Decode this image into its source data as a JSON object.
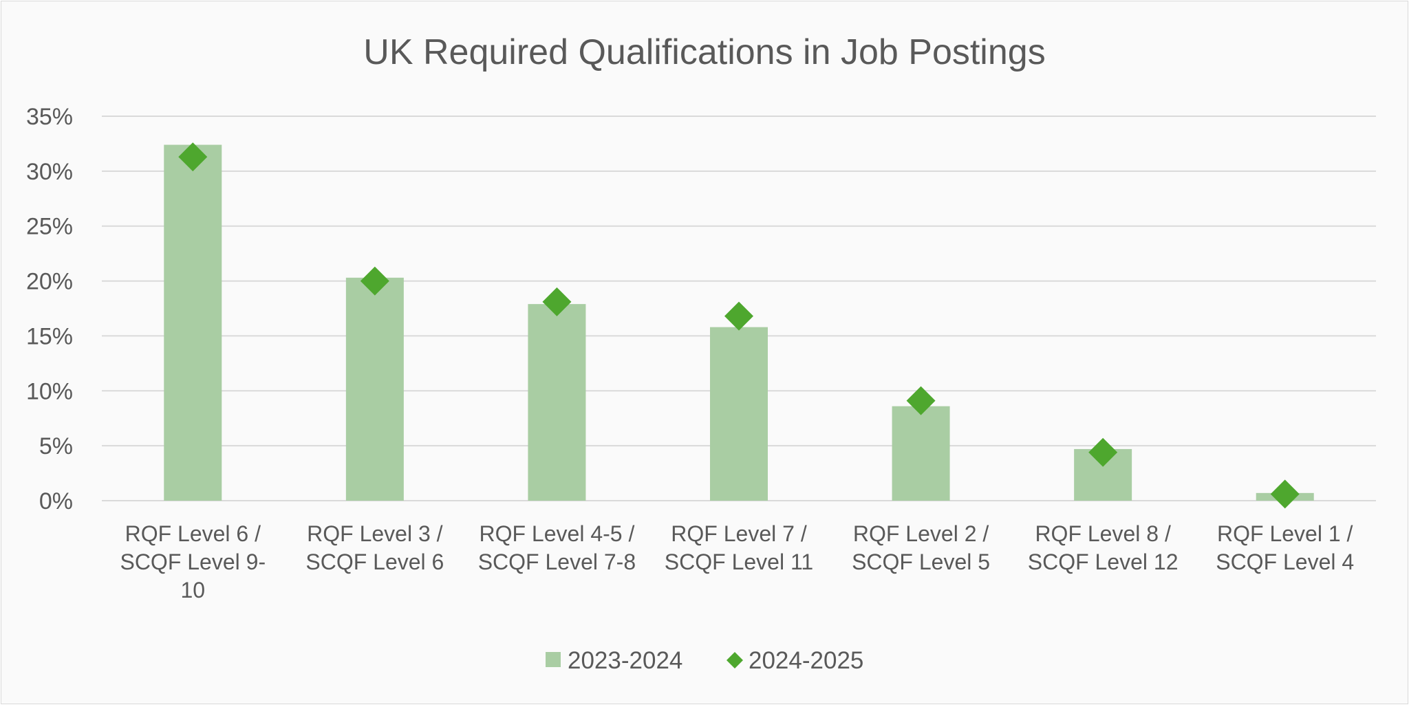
{
  "chart_data": {
    "type": "bar",
    "title": "UK Required Qualifications in Job Postings",
    "xlabel": "",
    "ylabel": "",
    "ylim": [
      0,
      0.35
    ],
    "y_ticks": [
      0,
      0.05,
      0.1,
      0.15,
      0.2,
      0.25,
      0.3,
      0.35
    ],
    "y_tick_labels": [
      "0%",
      "5%",
      "10%",
      "15%",
      "20%",
      "25%",
      "30%",
      "35%"
    ],
    "categories": [
      [
        "RQF Level 6 /",
        "SCQF Level 9-",
        "10"
      ],
      [
        "RQF Level 3 /",
        "SCQF Level 6"
      ],
      [
        "RQF Level 4-5 /",
        "SCQF Level 7-8"
      ],
      [
        "RQF Level 7 /",
        "SCQF Level 11"
      ],
      [
        "RQF Level 2 /",
        "SCQF Level 5"
      ],
      [
        "RQF Level 8 /",
        "SCQF Level 12"
      ],
      [
        "RQF Level 1 /",
        "SCQF Level 4"
      ]
    ],
    "series": [
      {
        "name": "2023-2024",
        "mark": "bar",
        "color": "#a9cda3",
        "values": [
          0.324,
          0.203,
          0.179,
          0.158,
          0.086,
          0.047,
          0.007
        ]
      },
      {
        "name": "2024-2025",
        "mark": "diamond",
        "color": "#4ea72e",
        "values": [
          0.313,
          0.2,
          0.181,
          0.168,
          0.091,
          0.044,
          0.006
        ]
      }
    ],
    "grid": true,
    "legend_position": "bottom"
  }
}
